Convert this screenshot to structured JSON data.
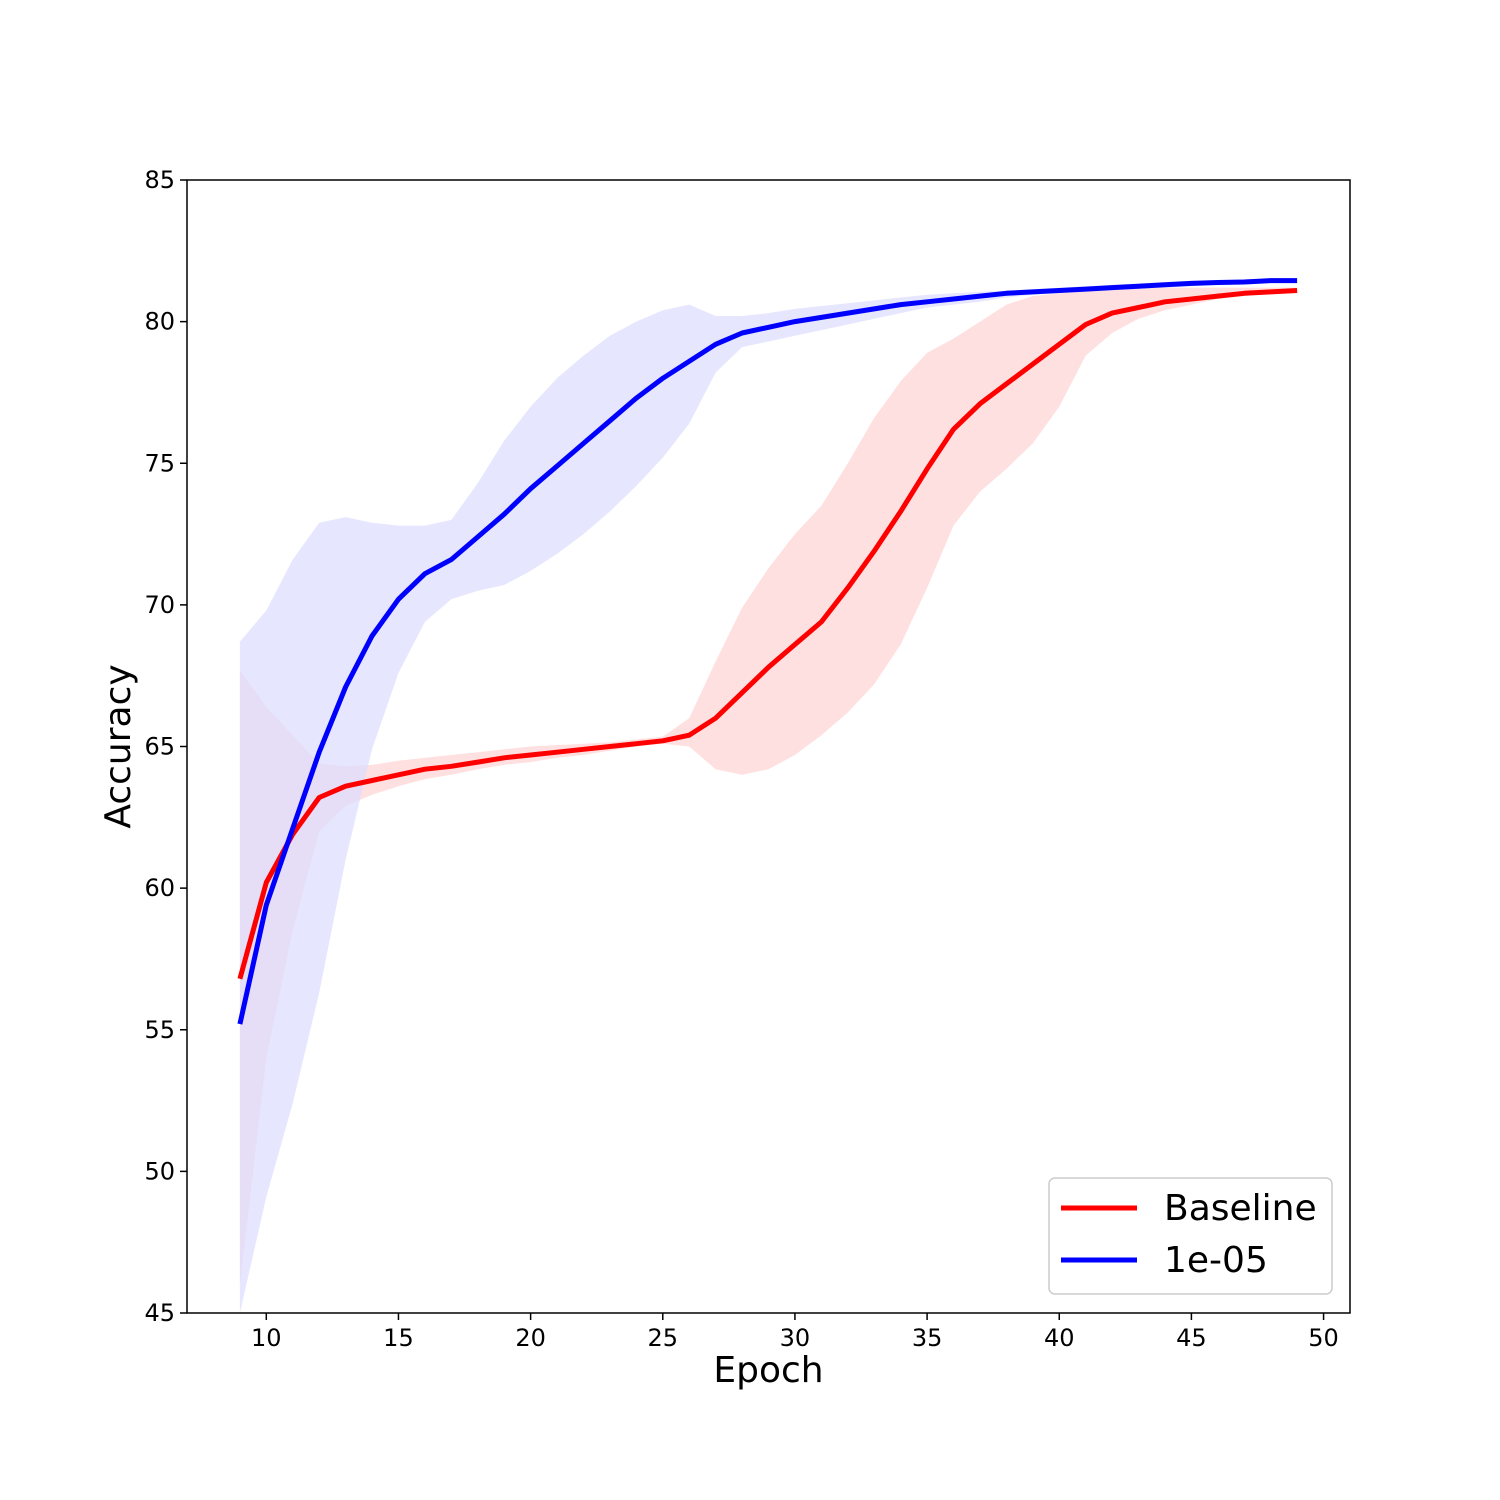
{
  "chart_data": {
    "type": "line",
    "xlabel": "Epoch",
    "ylabel": "Accuracy",
    "xlim": [
      7,
      51
    ],
    "ylim": [
      45,
      85
    ],
    "xticks": [
      10,
      15,
      20,
      25,
      30,
      35,
      40,
      45,
      50
    ],
    "yticks": [
      45,
      50,
      55,
      60,
      65,
      70,
      75,
      80,
      85
    ],
    "grid": false,
    "legend_position": "bottom-right",
    "x": [
      9,
      10,
      11,
      12,
      13,
      14,
      15,
      16,
      17,
      18,
      19,
      20,
      21,
      22,
      23,
      24,
      25,
      26,
      27,
      28,
      29,
      30,
      31,
      32,
      33,
      34,
      35,
      36,
      37,
      38,
      39,
      40,
      41,
      42,
      43,
      44,
      45,
      46,
      47,
      48,
      49
    ],
    "series": [
      {
        "name": "Baseline",
        "color": "#ff0000",
        "band_color": "#ffd6d6",
        "values": [
          56.8,
          60.2,
          61.9,
          63.2,
          63.6,
          63.8,
          64.0,
          64.2,
          64.3,
          64.45,
          64.6,
          64.7,
          64.8,
          64.9,
          65.0,
          65.1,
          65.2,
          65.4,
          66.0,
          66.9,
          67.8,
          68.6,
          69.4,
          70.6,
          71.9,
          73.3,
          74.8,
          76.2,
          77.1,
          77.8,
          78.5,
          79.2,
          79.9,
          80.3,
          80.5,
          80.7,
          80.8,
          80.9,
          81.0,
          81.05,
          81.1
        ],
        "lower": [
          46.0,
          54.0,
          58.5,
          62.0,
          62.9,
          63.3,
          63.6,
          63.85,
          64.0,
          64.2,
          64.35,
          64.45,
          64.6,
          64.7,
          64.85,
          65.0,
          65.1,
          65.0,
          64.2,
          64.0,
          64.2,
          64.7,
          65.4,
          66.2,
          67.2,
          68.6,
          70.6,
          72.8,
          74.0,
          74.8,
          75.7,
          77.0,
          78.8,
          79.6,
          80.1,
          80.4,
          80.6,
          80.8,
          80.9,
          81.0,
          81.05
        ],
        "upper": [
          67.7,
          66.4,
          65.4,
          64.4,
          64.3,
          64.35,
          64.5,
          64.6,
          64.7,
          64.8,
          64.9,
          65.0,
          65.05,
          65.1,
          65.15,
          65.25,
          65.35,
          66.0,
          68.0,
          69.9,
          71.3,
          72.5,
          73.5,
          75.0,
          76.6,
          77.9,
          78.9,
          79.4,
          80.0,
          80.6,
          80.9,
          81.0,
          81.1,
          81.15,
          81.2,
          81.2,
          81.2,
          81.2,
          81.2,
          81.2,
          81.2
        ]
      },
      {
        "name": "1e-05",
        "color": "#0000ff",
        "band_color": "#dedeff",
        "values": [
          55.2,
          59.4,
          62.1,
          64.8,
          67.1,
          68.9,
          70.2,
          71.1,
          71.6,
          72.4,
          73.2,
          74.1,
          74.9,
          75.7,
          76.5,
          77.3,
          78.0,
          78.6,
          79.2,
          79.6,
          79.8,
          80.0,
          80.15,
          80.3,
          80.45,
          80.6,
          80.7,
          80.8,
          80.9,
          81.0,
          81.05,
          81.1,
          81.15,
          81.2,
          81.25,
          81.3,
          81.35,
          81.38,
          81.4,
          81.45,
          81.45
        ],
        "lower": [
          44.5,
          49.1,
          52.4,
          56.3,
          61.0,
          64.9,
          67.6,
          69.4,
          70.2,
          70.5,
          70.7,
          71.2,
          71.8,
          72.5,
          73.3,
          74.2,
          75.2,
          76.4,
          78.2,
          79.1,
          79.3,
          79.5,
          79.7,
          79.9,
          80.1,
          80.3,
          80.5,
          80.6,
          80.7,
          80.85,
          80.95,
          81.0,
          81.05,
          81.1,
          81.15,
          81.2,
          81.25,
          81.3,
          81.35,
          81.4,
          81.4
        ],
        "upper": [
          68.7,
          69.8,
          71.6,
          72.9,
          73.1,
          72.9,
          72.8,
          72.8,
          73.0,
          74.3,
          75.8,
          77.0,
          78.0,
          78.8,
          79.5,
          80.0,
          80.4,
          80.6,
          80.2,
          80.2,
          80.3,
          80.45,
          80.55,
          80.65,
          80.75,
          80.85,
          80.95,
          81.0,
          81.05,
          81.1,
          81.15,
          81.2,
          81.25,
          81.3,
          81.35,
          81.4,
          81.45,
          81.45,
          81.5,
          81.5,
          81.5
        ]
      }
    ]
  }
}
